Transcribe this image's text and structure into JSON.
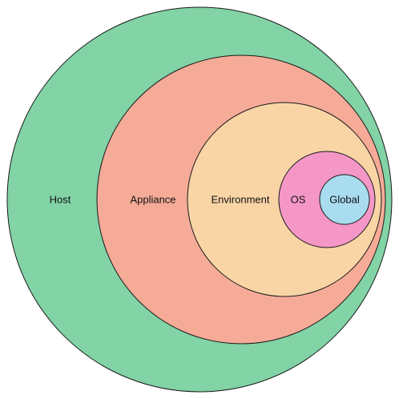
{
  "rings": [
    {
      "id": "host",
      "label": "Host",
      "color": "#82d3a5"
    },
    {
      "id": "appliance",
      "label": "Appliance",
      "color": "#f5ab98"
    },
    {
      "id": "environment",
      "label": "Environment",
      "color": "#f9d5a6"
    },
    {
      "id": "os",
      "label": "OS",
      "color": "#f497c7"
    },
    {
      "id": "global",
      "label": "Global",
      "color": "#a9dcef"
    }
  ]
}
